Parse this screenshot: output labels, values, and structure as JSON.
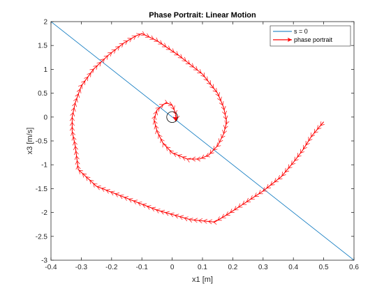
{
  "chart_data": {
    "type": "line",
    "title": "Phase Portrait: Linear Motion",
    "xlabel": "x1 [m]",
    "ylabel": "x3 [m/s]",
    "xlim": [
      -0.4,
      0.6
    ],
    "ylim": [
      -3,
      2
    ],
    "xticks": [
      "-0.4",
      "-0.3",
      "-0.2",
      "-0.1",
      "0",
      "0.1",
      "0.2",
      "0.3",
      "0.4",
      "0.5",
      "0.6"
    ],
    "yticks": [
      "-3",
      "-2.5",
      "-2",
      "-1.5",
      "-1",
      "-0.5",
      "0",
      "0.5",
      "1",
      "1.5",
      "2"
    ],
    "grid": false,
    "legend_position": "top-right",
    "series": [
      {
        "name": "s = 0",
        "color": "#0072BD",
        "x": [
          -0.4,
          0.6
        ],
        "y": [
          2,
          -3
        ]
      },
      {
        "name": "phase portrait",
        "color": "#ff0000",
        "marker": "arrows",
        "x": [
          0.5,
          0.46,
          0.43,
          0.4,
          0.36,
          0.3,
          0.24,
          0.18,
          0.14,
          0.06,
          -0.05,
          -0.15,
          -0.25,
          -0.31,
          -0.32,
          -0.33,
          -0.33,
          -0.32,
          -0.3,
          -0.26,
          -0.21,
          -0.16,
          -0.12,
          -0.1,
          -0.05,
          0.02,
          0.1,
          0.15,
          0.17,
          0.18,
          0.17,
          0.15,
          0.12,
          0.09,
          0.05,
          0.0,
          -0.03,
          -0.05,
          -0.06,
          -0.05,
          -0.03,
          -0.02,
          0.0,
          0.01,
          0.015,
          0.013,
          0.008,
          0.003
        ],
        "y": [
          -0.1,
          -0.4,
          -0.7,
          -0.95,
          -1.25,
          -1.55,
          -1.8,
          -2.05,
          -2.2,
          -2.15,
          -1.95,
          -1.7,
          -1.45,
          -1.1,
          -0.6,
          -0.3,
          0.0,
          0.3,
          0.65,
          1.0,
          1.3,
          1.55,
          1.7,
          1.75,
          1.6,
          1.3,
          0.9,
          0.5,
          0.2,
          -0.1,
          -0.35,
          -0.6,
          -0.8,
          -0.88,
          -0.88,
          -0.75,
          -0.55,
          -0.3,
          -0.05,
          0.15,
          0.26,
          0.3,
          0.25,
          0.1,
          -0.02,
          -0.07,
          -0.02,
          0.0
        ]
      }
    ],
    "annotations": [
      {
        "type": "circle",
        "cx": 0,
        "cy": 0,
        "r_x": 0.018
      }
    ]
  }
}
